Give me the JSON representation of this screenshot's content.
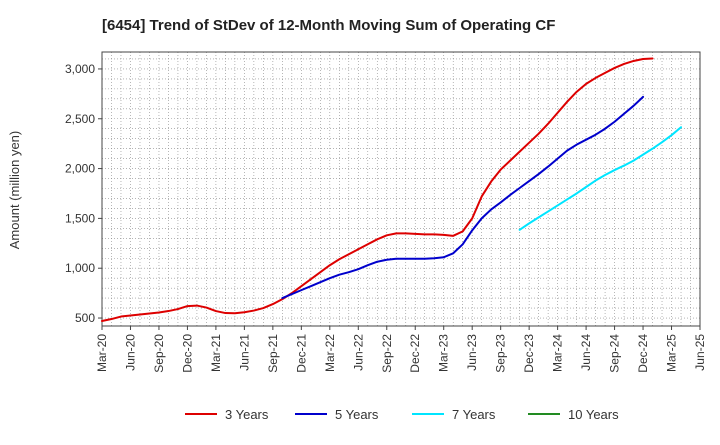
{
  "chart_data": {
    "type": "line",
    "title": "[6454]  Trend of StDev of 12-Month Moving Sum of Operating CF",
    "ylabel": "Amount (million yen)",
    "xlabel": "",
    "grid": true,
    "legend_position": "bottom",
    "ylim": [
      420,
      3170
    ],
    "y_ticks": [
      500,
      1000,
      1500,
      2000,
      2500,
      3000
    ],
    "y_tick_labels": [
      "500",
      "1,000",
      "1,500",
      "2,000",
      "2,500",
      "3,000"
    ],
    "x_ticks": [
      "Mar-20",
      "Jun-20",
      "Sep-20",
      "Dec-20",
      "Mar-21",
      "Jun-21",
      "Sep-21",
      "Dec-21",
      "Mar-22",
      "Jun-22",
      "Sep-22",
      "Dec-22",
      "Mar-23",
      "Jun-23",
      "Sep-23",
      "Dec-23",
      "Mar-24",
      "Jun-24",
      "Sep-24",
      "Dec-24",
      "Mar-25",
      "Jun-25"
    ],
    "x_start": "2020-03",
    "x_end": "2025-06",
    "series": [
      {
        "name": "3 Years",
        "color": "#dd0000",
        "start": "2020-03",
        "values": [
          470,
          490,
          515,
          525,
          535,
          545,
          555,
          570,
          590,
          620,
          625,
          605,
          570,
          550,
          548,
          558,
          575,
          600,
          640,
          690,
          750,
          820,
          890,
          960,
          1030,
          1090,
          1140,
          1190,
          1240,
          1290,
          1330,
          1350,
          1350,
          1345,
          1340,
          1340,
          1335,
          1325,
          1370,
          1500,
          1720,
          1870,
          1990,
          2080,
          2170,
          2260,
          2350,
          2450,
          2560,
          2670,
          2770,
          2850,
          2910,
          2960,
          3010,
          3050,
          3080,
          3100,
          3105
        ]
      },
      {
        "name": "5 Years",
        "color": "#0000cc",
        "start": "2021-10",
        "values": [
          700,
          740,
          780,
          820,
          860,
          900,
          935,
          960,
          990,
          1030,
          1065,
          1085,
          1095,
          1095,
          1095,
          1095,
          1100,
          1110,
          1150,
          1240,
          1380,
          1500,
          1590,
          1660,
          1735,
          1805,
          1875,
          1945,
          2020,
          2100,
          2180,
          2240,
          2290,
          2340,
          2400,
          2470,
          2550,
          2630,
          2720
        ]
      },
      {
        "name": "7 Years",
        "color": "#00e5ff",
        "start": "2023-11",
        "values": [
          1385,
          1450,
          1510,
          1570,
          1630,
          1690,
          1750,
          1815,
          1880,
          1935,
          1985,
          2030,
          2080,
          2140,
          2200,
          2265,
          2335,
          2415
        ]
      },
      {
        "name": "10 Years",
        "color": "#228b22",
        "start": "2023-11",
        "values": []
      }
    ]
  }
}
